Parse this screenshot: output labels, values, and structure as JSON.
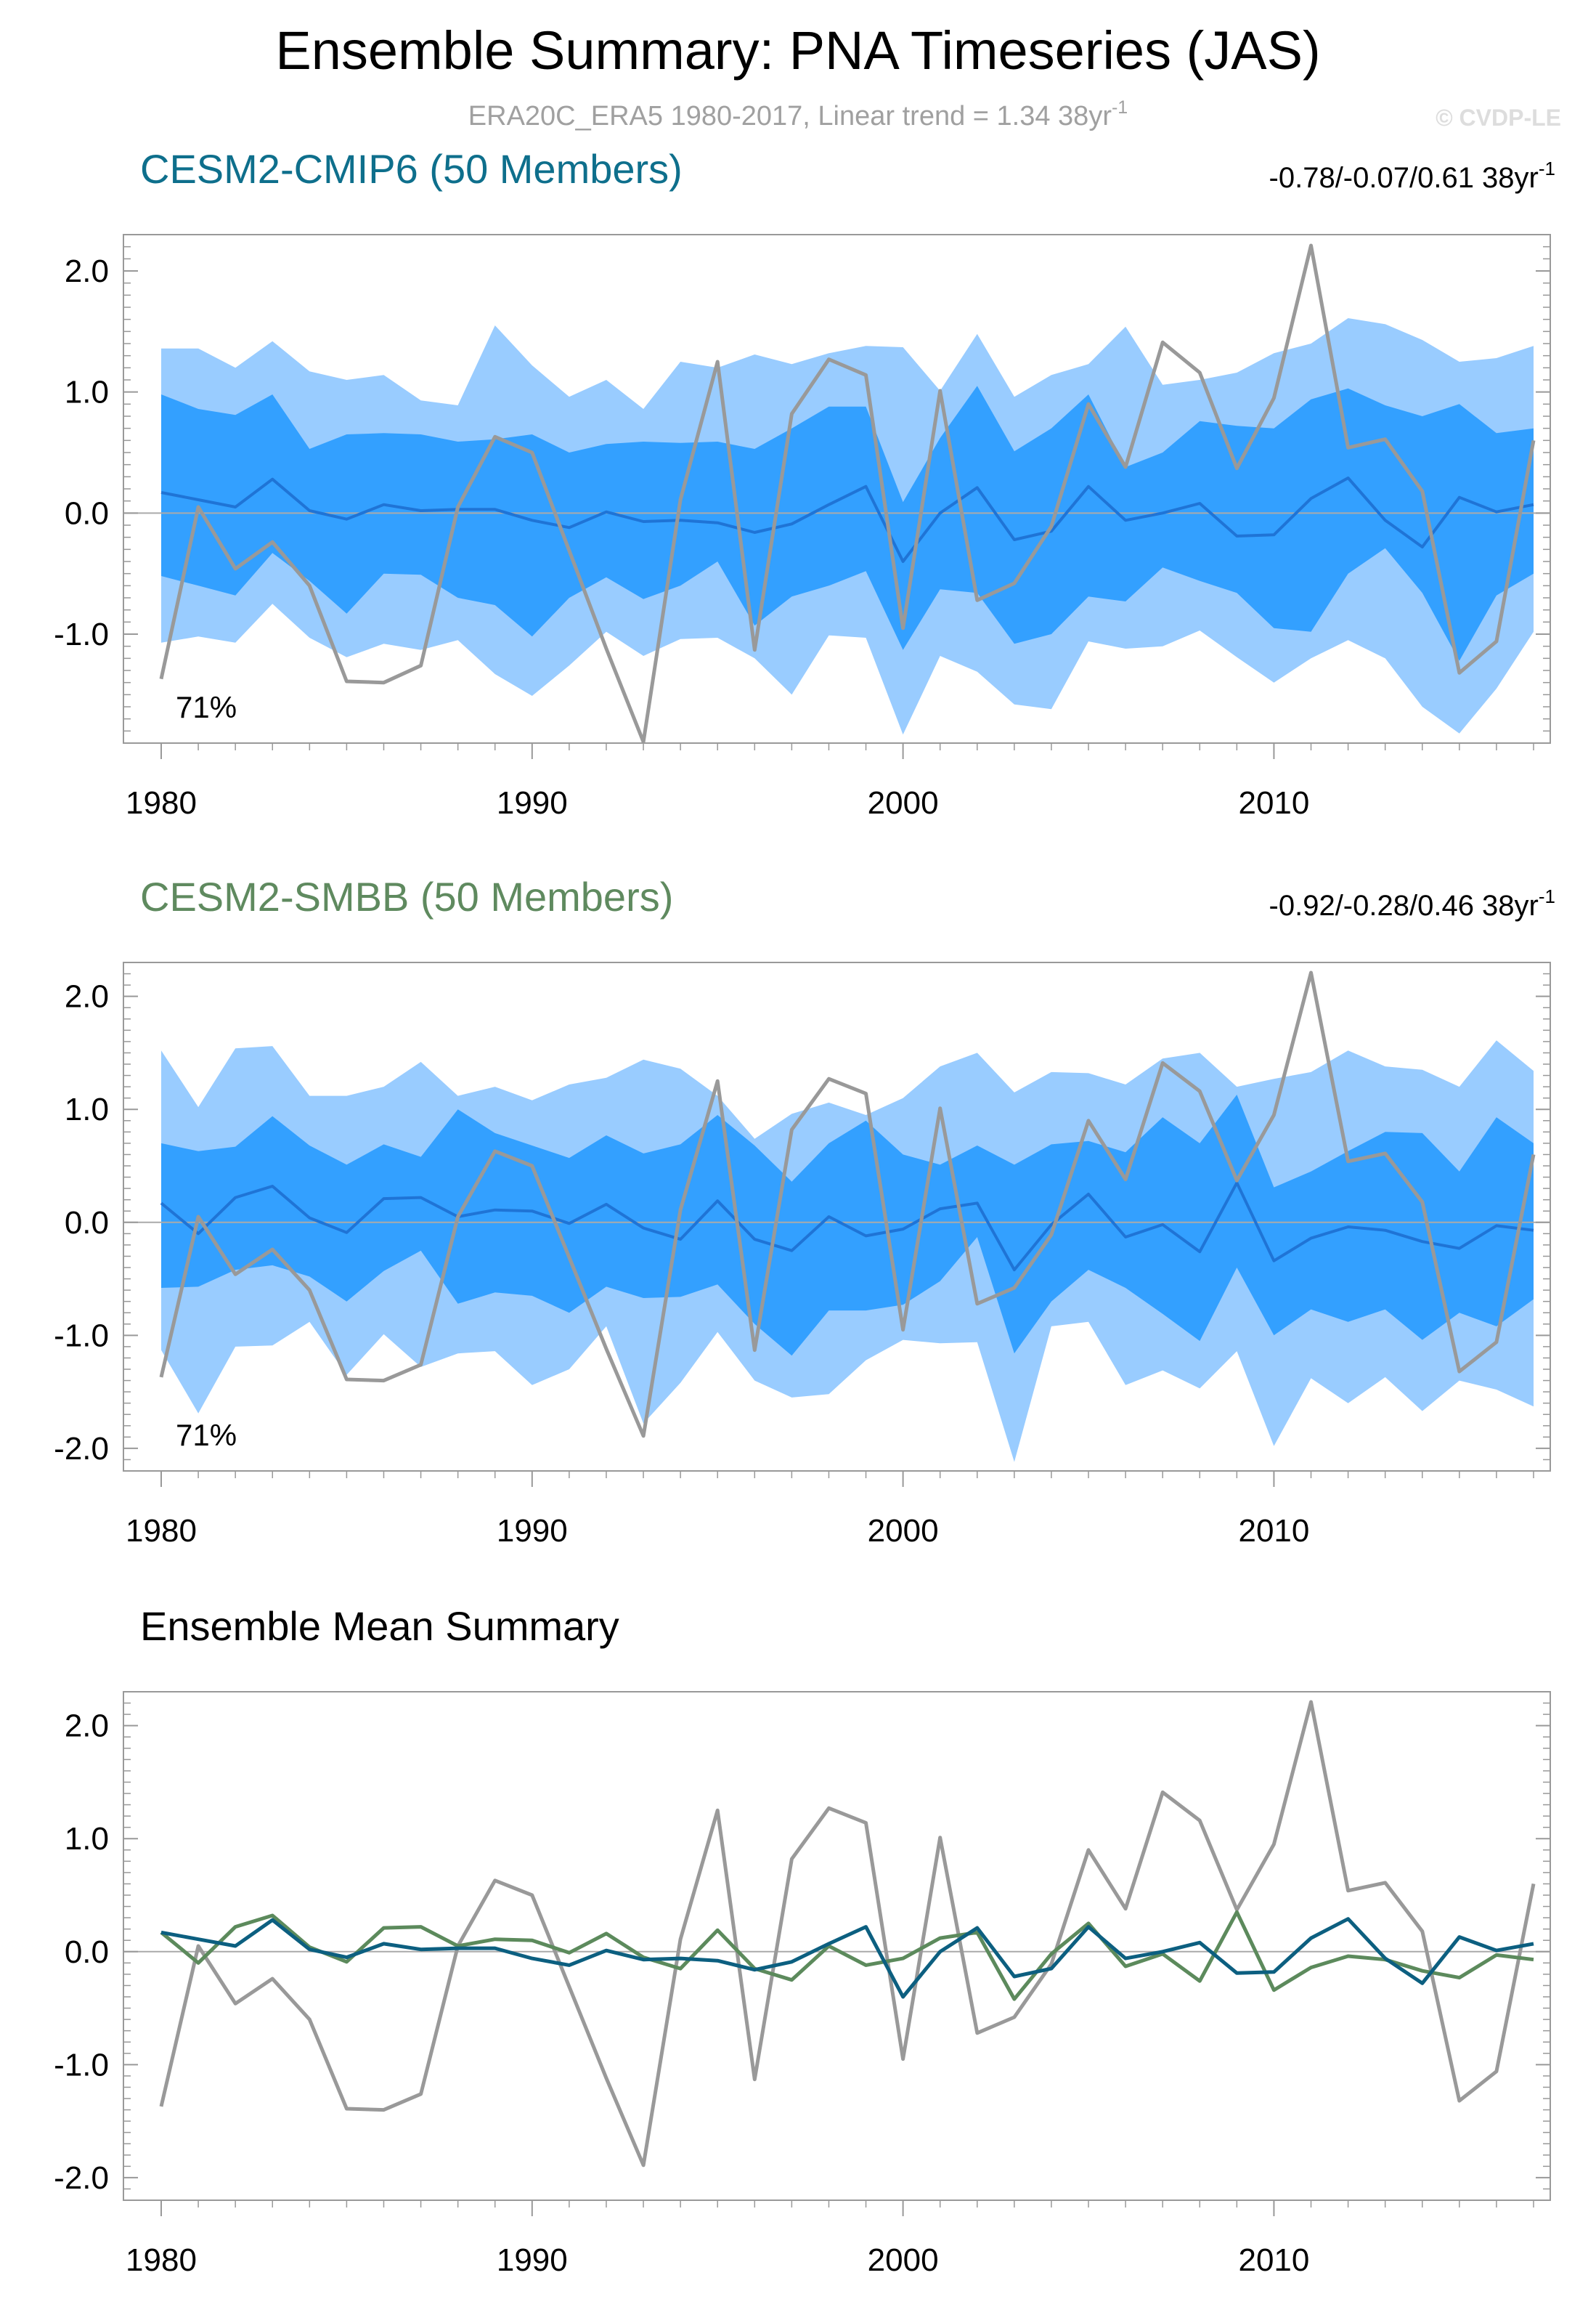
{
  "title": "Ensemble Summary: PNA Timeseries (JAS)",
  "obs_info": {
    "text": "ERA20C_ERA5 1980-2017, Linear trend = 1.34 38yr",
    "sup": "-1"
  },
  "credit": "© CVDP-LE",
  "colors": {
    "obs": "#999999",
    "band_outer": "#99ccff",
    "band_inner": "#33a0ff",
    "member_mean": "#1f74d6",
    "cmip6_title": "#0e6f8c",
    "smbb_title": "#5f8a5f",
    "cmip6_mean": "#0c5f80",
    "smbb_mean": "#5c8a5c",
    "zero_line": "#aaaaaa",
    "axis": "#999999"
  },
  "chart_data": [
    {
      "type": "area",
      "name": "CESM2-CMIP6 (50 Members)",
      "trend_text": "-0.78/-0.07/0.61 38yr",
      "trend_sup": "-1",
      "annotation": "71%",
      "xlim": [
        1980,
        2017
      ],
      "ylim": [
        -1.9,
        2.3
      ],
      "xticks": [
        1980,
        1990,
        2000,
        2010
      ],
      "xtick_labels": [
        "1980",
        "1990",
        "2000",
        "2010"
      ],
      "yticks": [
        -1.0,
        0.0,
        1.0,
        2.0
      ],
      "ytick_labels": [
        "-1.0",
        "0.0",
        "1.0",
        "2.0"
      ],
      "x": [
        1980,
        1981,
        1982,
        1983,
        1984,
        1985,
        1986,
        1987,
        1988,
        1989,
        1990,
        1991,
        1992,
        1993,
        1994,
        1995,
        1996,
        1997,
        1998,
        1999,
        2000,
        2001,
        2002,
        2003,
        2004,
        2005,
        2006,
        2007,
        2008,
        2009,
        2010,
        2011,
        2012,
        2013,
        2014,
        2015,
        2016,
        2017
      ],
      "p97": [
        1.36,
        1.36,
        1.2,
        1.42,
        1.17,
        1.1,
        1.14,
        0.93,
        0.89,
        1.55,
        1.22,
        0.96,
        1.1,
        0.86,
        1.25,
        1.2,
        1.31,
        1.23,
        1.32,
        1.38,
        1.37,
        1.01,
        1.48,
        0.96,
        1.14,
        1.23,
        1.54,
        1.06,
        1.1,
        1.16,
        1.32,
        1.4,
        1.61,
        1.56,
        1.43,
        1.25,
        1.28,
        1.38
      ],
      "p84": [
        0.98,
        0.86,
        0.81,
        0.98,
        0.53,
        0.65,
        0.66,
        0.65,
        0.59,
        0.61,
        0.65,
        0.5,
        0.57,
        0.59,
        0.58,
        0.59,
        0.53,
        0.7,
        0.88,
        0.88,
        0.09,
        0.62,
        1.05,
        0.51,
        0.7,
        0.98,
        0.38,
        0.5,
        0.76,
        0.72,
        0.7,
        0.94,
        1.03,
        0.89,
        0.8,
        0.9,
        0.66,
        0.7
      ],
      "mean": [
        0.17,
        0.11,
        0.05,
        0.28,
        0.02,
        -0.05,
        0.07,
        0.02,
        0.03,
        0.03,
        -0.06,
        -0.12,
        0.01,
        -0.07,
        -0.06,
        -0.08,
        -0.16,
        -0.09,
        0.07,
        0.22,
        -0.4,
        0.0,
        0.21,
        -0.22,
        -0.15,
        0.22,
        -0.06,
        0.0,
        0.08,
        -0.19,
        -0.18,
        0.12,
        0.29,
        -0.06,
        -0.28,
        0.13,
        0.01,
        0.07
      ],
      "p16": [
        -0.52,
        -0.6,
        -0.68,
        -0.33,
        -0.56,
        -0.83,
        -0.5,
        -0.51,
        -0.7,
        -0.76,
        -1.02,
        -0.7,
        -0.53,
        -0.71,
        -0.6,
        -0.4,
        -0.93,
        -0.69,
        -0.6,
        -0.48,
        -1.13,
        -0.63,
        -0.66,
        -1.08,
        -1.0,
        -0.69,
        -0.73,
        -0.45,
        -0.56,
        -0.66,
        -0.95,
        -0.98,
        -0.5,
        -0.29,
        -0.66,
        -1.22,
        -0.68,
        -0.5
      ],
      "p3": [
        -1.07,
        -1.02,
        -1.07,
        -0.75,
        -1.03,
        -1.19,
        -1.08,
        -1.13,
        -1.05,
        -1.33,
        -1.51,
        -1.26,
        -0.98,
        -1.18,
        -1.04,
        -1.03,
        -1.2,
        -1.5,
        -1.01,
        -1.03,
        -1.83,
        -1.18,
        -1.31,
        -1.58,
        -1.62,
        -1.06,
        -1.12,
        -1.1,
        -0.97,
        -1.19,
        -1.4,
        -1.2,
        -1.05,
        -1.2,
        -1.6,
        -1.82,
        -1.45,
        -0.98
      ],
      "obs": [
        -1.37,
        0.05,
        -0.46,
        -0.24,
        -0.6,
        -1.39,
        -1.4,
        -1.26,
        0.05,
        0.63,
        0.5,
        -0.31,
        -1.12,
        -1.89,
        0.11,
        1.25,
        -1.13,
        0.82,
        1.27,
        1.14,
        -0.95,
        1.01,
        -0.72,
        -0.58,
        -0.11,
        0.9,
        0.38,
        1.41,
        1.16,
        0.37,
        0.95,
        2.21,
        0.54,
        0.61,
        0.18,
        -1.32,
        -1.06,
        0.6
      ]
    },
    {
      "type": "area",
      "name": "CESM2-SMBB (50 Members)",
      "trend_text": "-0.92/-0.28/0.46 38yr",
      "trend_sup": "-1",
      "annotation": "71%",
      "xlim": [
        1980,
        2017
      ],
      "ylim": [
        -2.2,
        2.3
      ],
      "xticks": [
        1980,
        1990,
        2000,
        2010
      ],
      "xtick_labels": [
        "1980",
        "1990",
        "2000",
        "2010"
      ],
      "yticks": [
        -2.0,
        -1.0,
        0.0,
        1.0,
        2.0
      ],
      "ytick_labels": [
        "-2.0",
        "-1.0",
        "0.0",
        "1.0",
        "2.0"
      ],
      "x": [
        1980,
        1981,
        1982,
        1983,
        1984,
        1985,
        1986,
        1987,
        1988,
        1989,
        1990,
        1991,
        1992,
        1993,
        1994,
        1995,
        1996,
        1997,
        1998,
        1999,
        2000,
        2001,
        2002,
        2003,
        2004,
        2005,
        2006,
        2007,
        2008,
        2009,
        2010,
        2011,
        2012,
        2013,
        2014,
        2015,
        2016,
        2017
      ],
      "p97": [
        1.52,
        1.02,
        1.54,
        1.56,
        1.12,
        1.12,
        1.2,
        1.42,
        1.12,
        1.2,
        1.08,
        1.22,
        1.28,
        1.44,
        1.36,
        1.12,
        0.74,
        0.96,
        1.06,
        0.95,
        1.1,
        1.38,
        1.5,
        1.15,
        1.33,
        1.32,
        1.22,
        1.45,
        1.5,
        1.2,
        1.27,
        1.33,
        1.52,
        1.38,
        1.35,
        1.2,
        1.61,
        1.34
      ],
      "p84": [
        0.7,
        0.63,
        0.67,
        0.94,
        0.68,
        0.51,
        0.69,
        0.58,
        1.0,
        0.79,
        0.68,
        0.57,
        0.77,
        0.61,
        0.69,
        0.95,
        0.68,
        0.36,
        0.7,
        0.9,
        0.6,
        0.51,
        0.68,
        0.51,
        0.69,
        0.72,
        0.62,
        0.93,
        0.7,
        1.13,
        0.31,
        0.45,
        0.63,
        0.8,
        0.79,
        0.45,
        0.93,
        0.7
      ],
      "mean": [
        0.17,
        -0.1,
        0.22,
        0.32,
        0.04,
        -0.09,
        0.21,
        0.22,
        0.05,
        0.11,
        0.1,
        -0.01,
        0.16,
        -0.05,
        -0.15,
        0.19,
        -0.15,
        -0.25,
        0.05,
        -0.12,
        -0.06,
        0.12,
        0.17,
        -0.42,
        -0.02,
        0.25,
        -0.13,
        -0.02,
        -0.26,
        0.35,
        -0.34,
        -0.14,
        -0.04,
        -0.07,
        -0.17,
        -0.23,
        -0.03,
        -0.07
      ],
      "p16": [
        -0.58,
        -0.57,
        -0.42,
        -0.38,
        -0.48,
        -0.7,
        -0.43,
        -0.25,
        -0.72,
        -0.62,
        -0.65,
        -0.8,
        -0.57,
        -0.67,
        -0.66,
        -0.55,
        -0.9,
        -1.18,
        -0.78,
        -0.78,
        -0.73,
        -0.52,
        -0.13,
        -1.16,
        -0.7,
        -0.42,
        -0.58,
        -0.81,
        -1.05,
        -0.4,
        -1.0,
        -0.77,
        -0.88,
        -0.77,
        -1.04,
        -0.8,
        -0.92,
        -0.68
      ],
      "p3": [
        -1.13,
        -1.69,
        -1.1,
        -1.09,
        -0.88,
        -1.35,
        -0.99,
        -1.28,
        -1.16,
        -1.14,
        -1.44,
        -1.3,
        -0.92,
        -1.78,
        -1.42,
        -0.97,
        -1.4,
        -1.55,
        -1.52,
        -1.22,
        -1.04,
        -1.07,
        -1.06,
        -2.12,
        -0.92,
        -0.88,
        -1.44,
        -1.31,
        -1.47,
        -1.14,
        -1.98,
        -1.38,
        -1.6,
        -1.37,
        -1.67,
        -1.4,
        -1.48,
        -1.63
      ],
      "obs": [
        -1.37,
        0.05,
        -0.46,
        -0.24,
        -0.6,
        -1.39,
        -1.4,
        -1.26,
        0.05,
        0.63,
        0.5,
        -0.31,
        -1.12,
        -1.89,
        0.11,
        1.25,
        -1.13,
        0.82,
        1.27,
        1.14,
        -0.95,
        1.01,
        -0.72,
        -0.58,
        -0.11,
        0.9,
        0.38,
        1.41,
        1.16,
        0.37,
        0.95,
        2.21,
        0.54,
        0.61,
        0.18,
        -1.32,
        -1.06,
        0.6
      ]
    },
    {
      "type": "line",
      "name": "Ensemble Mean Summary",
      "xlim": [
        1980,
        2017
      ],
      "ylim": [
        -2.2,
        2.3
      ],
      "xticks": [
        1980,
        1990,
        2000,
        2010
      ],
      "xtick_labels": [
        "1980",
        "1990",
        "2000",
        "2010"
      ],
      "yticks": [
        -2.0,
        -1.0,
        0.0,
        1.0,
        2.0
      ],
      "ytick_labels": [
        "-2.0",
        "-1.0",
        "0.0",
        "1.0",
        "2.0"
      ],
      "x": [
        1980,
        1981,
        1982,
        1983,
        1984,
        1985,
        1986,
        1987,
        1988,
        1989,
        1990,
        1991,
        1992,
        1993,
        1994,
        1995,
        1996,
        1997,
        1998,
        1999,
        2000,
        2001,
        2002,
        2003,
        2004,
        2005,
        2006,
        2007,
        2008,
        2009,
        2010,
        2011,
        2012,
        2013,
        2014,
        2015,
        2016,
        2017
      ],
      "series": [
        {
          "name": "CESM2-CMIP6",
          "values": [
            0.17,
            0.11,
            0.05,
            0.28,
            0.02,
            -0.05,
            0.07,
            0.02,
            0.03,
            0.03,
            -0.06,
            -0.12,
            0.01,
            -0.07,
            -0.06,
            -0.08,
            -0.16,
            -0.09,
            0.07,
            0.22,
            -0.4,
            0.0,
            0.21,
            -0.22,
            -0.15,
            0.22,
            -0.06,
            0.0,
            0.08,
            -0.19,
            -0.18,
            0.12,
            0.29,
            -0.06,
            -0.28,
            0.13,
            0.01,
            0.07
          ]
        },
        {
          "name": "CESM2-SMBB",
          "values": [
            0.17,
            -0.1,
            0.22,
            0.32,
            0.04,
            -0.09,
            0.21,
            0.22,
            0.05,
            0.11,
            0.1,
            -0.01,
            0.16,
            -0.05,
            -0.15,
            0.19,
            -0.15,
            -0.25,
            0.05,
            -0.12,
            -0.06,
            0.12,
            0.17,
            -0.42,
            -0.02,
            0.25,
            -0.13,
            -0.02,
            -0.26,
            0.35,
            -0.34,
            -0.14,
            -0.04,
            -0.07,
            -0.17,
            -0.23,
            -0.03,
            -0.07
          ]
        },
        {
          "name": "ERA20C_ERA5",
          "values": [
            -1.37,
            0.05,
            -0.46,
            -0.24,
            -0.6,
            -1.39,
            -1.4,
            -1.26,
            0.05,
            0.63,
            0.5,
            -0.31,
            -1.12,
            -1.89,
            0.11,
            1.25,
            -1.13,
            0.82,
            1.27,
            1.14,
            -0.95,
            1.01,
            -0.72,
            -0.58,
            -0.11,
            0.9,
            0.38,
            1.41,
            1.16,
            0.37,
            0.95,
            2.21,
            0.54,
            0.61,
            0.18,
            -1.32,
            -1.06,
            0.6
          ]
        }
      ]
    }
  ]
}
